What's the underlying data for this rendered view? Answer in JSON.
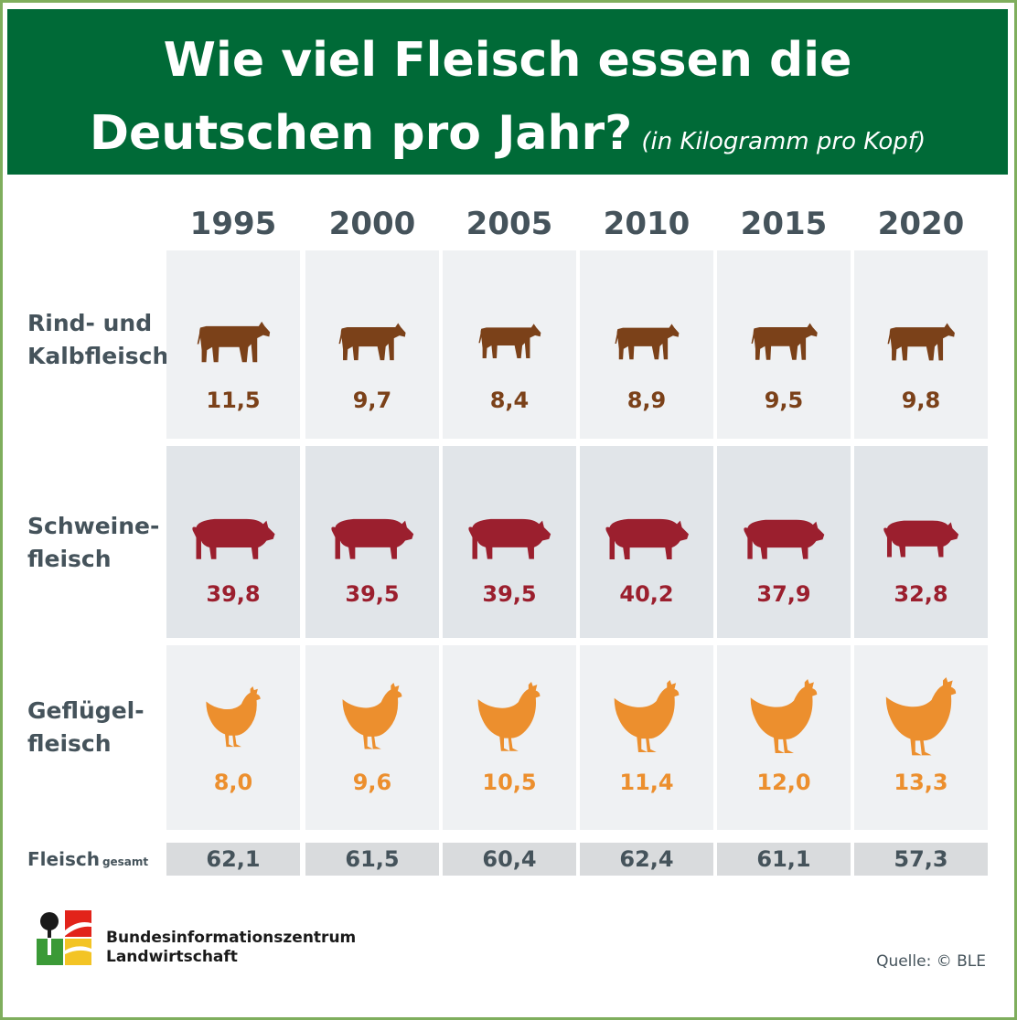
{
  "title_line1": "Wie viel Fleisch essen die",
  "title_line2": "Deutschen pro Jahr?",
  "subtitle": "(in Kilogramm pro Kopf)",
  "chart_data": {
    "type": "table",
    "categories": [
      "1995",
      "2000",
      "2005",
      "2010",
      "2015",
      "2020"
    ],
    "series": [
      {
        "name": "Rind- und\nKalbfleisch",
        "values": [
          "11,5",
          "9,7",
          "8,4",
          "8,9",
          "9,5",
          "9,8"
        ],
        "color": "#7b4119",
        "icon": "cow-icon"
      },
      {
        "name": "Schweine-\nfleisch",
        "values": [
          "39,8",
          "39,5",
          "39,5",
          "40,2",
          "37,9",
          "32,8"
        ],
        "color": "#9b1f2e",
        "icon": "pig-icon"
      },
      {
        "name": "Geflügel-\nfleisch",
        "values": [
          "8,0",
          "9,6",
          "10,5",
          "11,4",
          "12,0",
          "13,3"
        ],
        "color": "#ec8f2e",
        "icon": "chicken-icon"
      }
    ],
    "total": {
      "label": "Fleisch",
      "label_small": "gesamt",
      "values": [
        "62,1",
        "61,5",
        "60,4",
        "62,4",
        "61,1",
        "57,3"
      ]
    }
  },
  "colors": {
    "banner": "#006a37",
    "frame": "#7fae5d"
  },
  "logo_icon": "bzl-logo-icon",
  "organization": "Bundesinformationszentrum\nLandwirtschaft",
  "source": "Quelle: © BLE"
}
